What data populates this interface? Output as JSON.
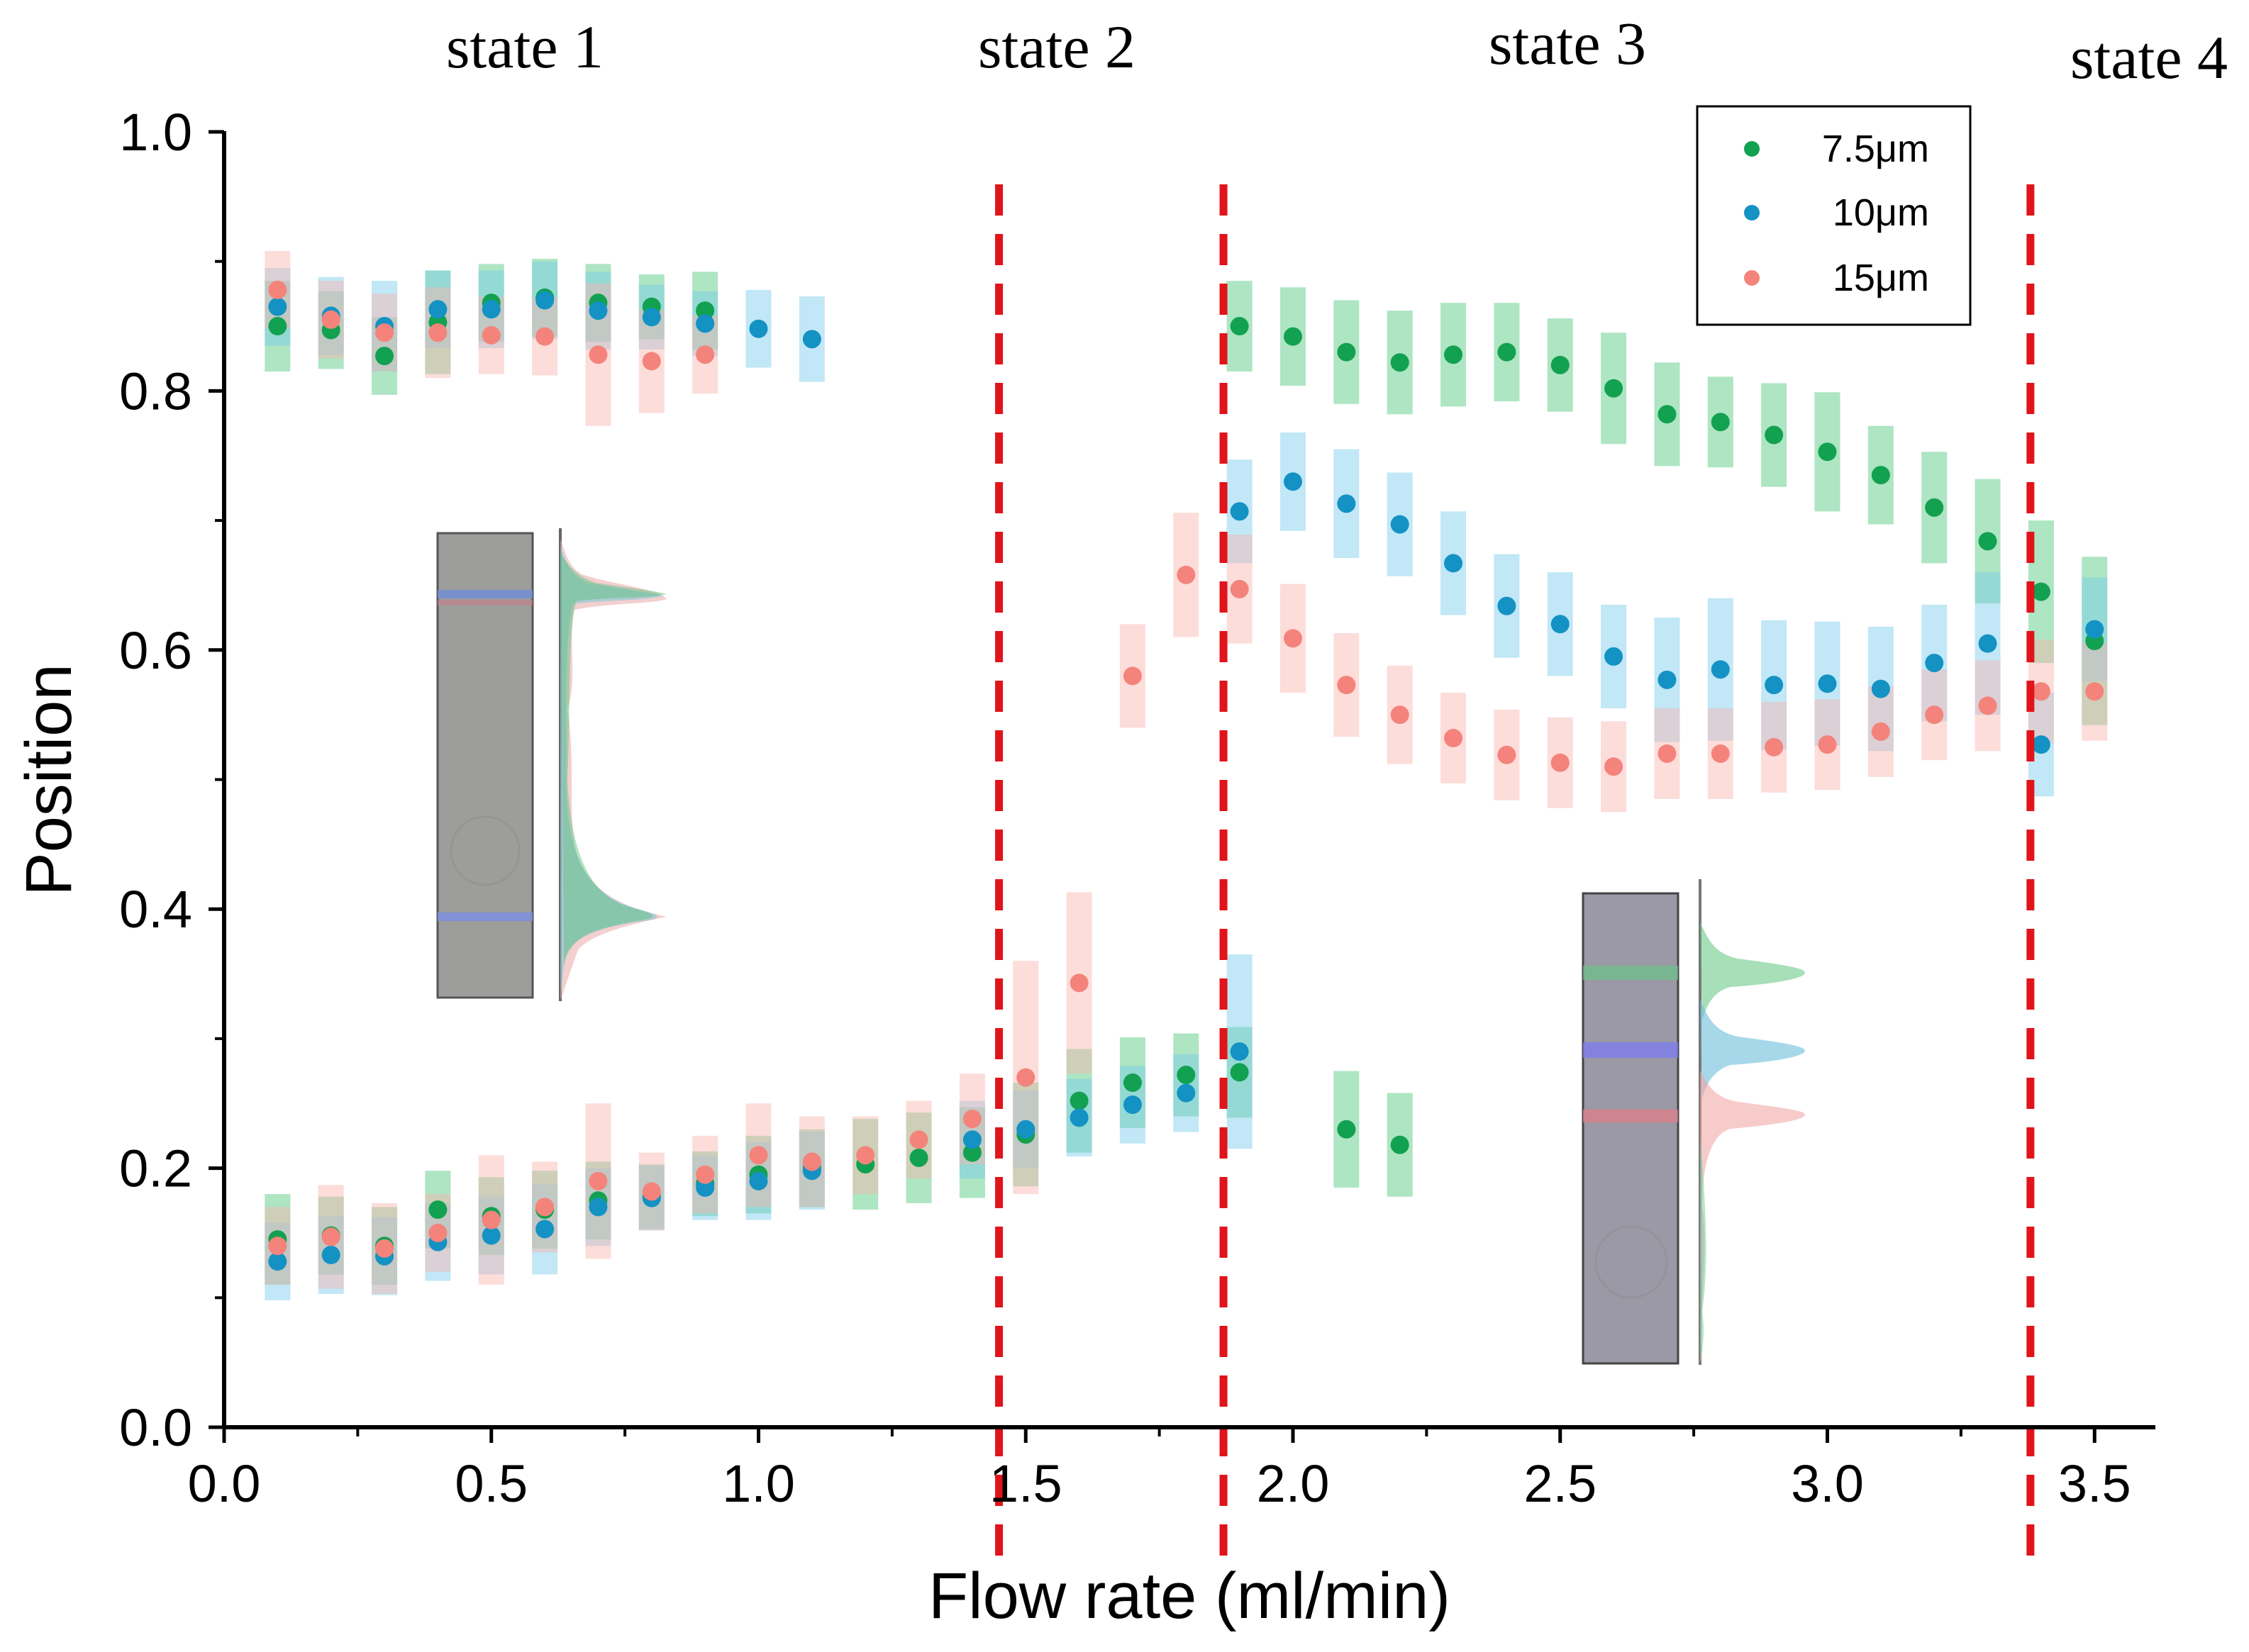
{
  "chart_data": {
    "type": "scatter",
    "xlabel": "Flow rate (ml/min)",
    "ylabel": "Position",
    "xlim": [
      0.0,
      3.6
    ],
    "ylim": [
      0.0,
      1.0
    ],
    "x_ticks": [
      0.0,
      0.5,
      1.0,
      1.5,
      2.0,
      2.5,
      3.0,
      3.5
    ],
    "x_tick_labels": [
      "0.0",
      "0.5",
      "1.0",
      "1.5",
      "2.0",
      "2.5",
      "3.0",
      "3.5"
    ],
    "y_ticks": [
      0.0,
      0.2,
      0.4,
      0.6,
      0.8,
      1.0
    ],
    "y_tick_labels": [
      "0.0",
      "0.2",
      "0.4",
      "0.6",
      "0.8",
      "1.0"
    ],
    "grid": false,
    "legend_position": "top-right",
    "state_labels": [
      {
        "text": "state 1",
        "x": 0.57
      },
      {
        "text": "state 2",
        "x": 1.57
      },
      {
        "text": "state 3",
        "x": 2.53
      },
      {
        "text": "state 4",
        "x": 3.5
      }
    ],
    "boundaries": [
      1.45,
      1.87,
      3.38
    ],
    "boundary_color": "#e0141a",
    "insets": [
      {
        "name": "inset-state1",
        "type": "channel image with intensity profile"
      },
      {
        "name": "inset-state3",
        "type": "channel image with intensity profile"
      }
    ],
    "series": [
      {
        "name": "7.5μm",
        "color": "#12a150",
        "band_color": "#4cc57a",
        "points": [
          [
            0.1,
            0.85,
            0.035
          ],
          [
            0.2,
            0.847,
            0.03
          ],
          [
            0.3,
            0.827,
            0.03
          ],
          [
            0.4,
            0.853,
            0.04
          ],
          [
            0.5,
            0.868,
            0.03
          ],
          [
            0.6,
            0.872,
            0.03
          ],
          [
            0.7,
            0.868,
            0.03
          ],
          [
            0.8,
            0.865,
            0.025
          ],
          [
            0.9,
            0.862,
            0.03
          ],
          [
            1.9,
            0.85,
            0.035
          ],
          [
            2.0,
            0.842,
            0.038
          ],
          [
            2.1,
            0.83,
            0.04
          ],
          [
            2.2,
            0.822,
            0.04
          ],
          [
            2.3,
            0.828,
            0.04
          ],
          [
            2.4,
            0.83,
            0.038
          ],
          [
            2.5,
            0.82,
            0.036
          ],
          [
            2.6,
            0.802,
            0.043
          ],
          [
            2.7,
            0.782,
            0.04
          ],
          [
            2.8,
            0.776,
            0.035
          ],
          [
            2.9,
            0.766,
            0.04
          ],
          [
            3.0,
            0.753,
            0.046
          ],
          [
            3.1,
            0.735,
            0.038
          ],
          [
            3.2,
            0.71,
            0.043
          ],
          [
            3.3,
            0.684,
            0.048
          ],
          [
            3.4,
            0.645,
            0.055
          ],
          [
            3.5,
            0.607,
            0.065
          ],
          [
            0.1,
            0.145,
            0.035
          ],
          [
            0.2,
            0.148,
            0.03
          ],
          [
            0.3,
            0.14,
            0.03
          ],
          [
            0.4,
            0.168,
            0.03
          ],
          [
            0.5,
            0.163,
            0.03
          ],
          [
            0.6,
            0.168,
            0.03
          ],
          [
            0.7,
            0.175,
            0.03
          ],
          [
            0.8,
            0.178,
            0.025
          ],
          [
            0.9,
            0.188,
            0.025
          ],
          [
            1.0,
            0.195,
            0.03
          ],
          [
            1.1,
            0.2,
            0.03
          ],
          [
            1.2,
            0.203,
            0.035
          ],
          [
            1.3,
            0.208,
            0.035
          ],
          [
            1.4,
            0.212,
            0.035
          ],
          [
            1.5,
            0.226,
            0.04
          ],
          [
            1.6,
            0.252,
            0.04
          ],
          [
            1.7,
            0.266,
            0.035
          ],
          [
            1.8,
            0.272,
            0.032
          ],
          [
            1.9,
            0.274,
            0.035
          ],
          [
            2.1,
            0.23,
            0.045
          ],
          [
            2.2,
            0.218,
            0.04
          ]
        ]
      },
      {
        "name": "10μm",
        "color": "#1492c4",
        "band_color": "#78c9ea",
        "points": [
          [
            0.1,
            0.865,
            0.03
          ],
          [
            0.2,
            0.858,
            0.03
          ],
          [
            0.3,
            0.85,
            0.035
          ],
          [
            0.4,
            0.863,
            0.03
          ],
          [
            0.5,
            0.863,
            0.03
          ],
          [
            0.6,
            0.87,
            0.03
          ],
          [
            0.7,
            0.862,
            0.03
          ],
          [
            0.8,
            0.857,
            0.025
          ],
          [
            0.9,
            0.852,
            0.025
          ],
          [
            1.0,
            0.848,
            0.03
          ],
          [
            1.1,
            0.84,
            0.033
          ],
          [
            1.9,
            0.707,
            0.04
          ],
          [
            2.0,
            0.73,
            0.038
          ],
          [
            2.1,
            0.713,
            0.042
          ],
          [
            2.2,
            0.697,
            0.04
          ],
          [
            2.3,
            0.667,
            0.04
          ],
          [
            2.4,
            0.634,
            0.04
          ],
          [
            2.5,
            0.62,
            0.04
          ],
          [
            2.6,
            0.595,
            0.04
          ],
          [
            2.7,
            0.577,
            0.048
          ],
          [
            2.8,
            0.585,
            0.055
          ],
          [
            2.9,
            0.573,
            0.05
          ],
          [
            3.0,
            0.574,
            0.048
          ],
          [
            3.1,
            0.57,
            0.048
          ],
          [
            3.2,
            0.59,
            0.045
          ],
          [
            3.3,
            0.605,
            0.055
          ],
          [
            3.4,
            0.527,
            0.04
          ],
          [
            3.5,
            0.616,
            0.04
          ],
          [
            0.1,
            0.128,
            0.03
          ],
          [
            0.2,
            0.133,
            0.03
          ],
          [
            0.3,
            0.132,
            0.03
          ],
          [
            0.4,
            0.143,
            0.03
          ],
          [
            0.5,
            0.148,
            0.03
          ],
          [
            0.6,
            0.153,
            0.035
          ],
          [
            0.7,
            0.17,
            0.03
          ],
          [
            0.8,
            0.177,
            0.025
          ],
          [
            0.9,
            0.185,
            0.025
          ],
          [
            1.0,
            0.19,
            0.03
          ],
          [
            1.1,
            0.198,
            0.03
          ],
          [
            1.4,
            0.222,
            0.03
          ],
          [
            1.5,
            0.23,
            0.03
          ],
          [
            1.6,
            0.239,
            0.03
          ],
          [
            1.7,
            0.249,
            0.03
          ],
          [
            1.8,
            0.258,
            0.03
          ],
          [
            1.9,
            0.29,
            0.075
          ]
        ]
      },
      {
        "name": "15μm",
        "color": "#f4837c",
        "band_color": "#f9b3ae",
        "points": [
          [
            0.1,
            0.878,
            0.03
          ],
          [
            0.2,
            0.855,
            0.03
          ],
          [
            0.3,
            0.845,
            0.03
          ],
          [
            0.4,
            0.845,
            0.035
          ],
          [
            0.5,
            0.843,
            0.03
          ],
          [
            0.6,
            0.842,
            0.03
          ],
          [
            0.7,
            0.828,
            0.055
          ],
          [
            0.8,
            0.823,
            0.04
          ],
          [
            0.9,
            0.828,
            0.03
          ],
          [
            1.7,
            0.58,
            0.04
          ],
          [
            1.8,
            0.658,
            0.048
          ],
          [
            1.9,
            0.647,
            0.042
          ],
          [
            2.0,
            0.609,
            0.042
          ],
          [
            2.1,
            0.573,
            0.04
          ],
          [
            2.2,
            0.55,
            0.038
          ],
          [
            2.3,
            0.532,
            0.035
          ],
          [
            2.4,
            0.519,
            0.035
          ],
          [
            2.5,
            0.513,
            0.035
          ],
          [
            2.6,
            0.51,
            0.035
          ],
          [
            2.7,
            0.52,
            0.035
          ],
          [
            2.8,
            0.52,
            0.035
          ],
          [
            2.9,
            0.525,
            0.035
          ],
          [
            3.0,
            0.527,
            0.035
          ],
          [
            3.1,
            0.537,
            0.035
          ],
          [
            3.2,
            0.55,
            0.035
          ],
          [
            3.3,
            0.557,
            0.035
          ],
          [
            3.4,
            0.568,
            0.04
          ],
          [
            3.5,
            0.568,
            0.038
          ],
          [
            0.1,
            0.14,
            0.03
          ],
          [
            0.2,
            0.147,
            0.04
          ],
          [
            0.3,
            0.138,
            0.035
          ],
          [
            0.4,
            0.15,
            0.03
          ],
          [
            0.5,
            0.16,
            0.05
          ],
          [
            0.6,
            0.17,
            0.035
          ],
          [
            0.7,
            0.19,
            0.06
          ],
          [
            0.8,
            0.182,
            0.03
          ],
          [
            0.9,
            0.195,
            0.03
          ],
          [
            1.0,
            0.21,
            0.04
          ],
          [
            1.1,
            0.205,
            0.035
          ],
          [
            1.2,
            0.21,
            0.03
          ],
          [
            1.3,
            0.222,
            0.03
          ],
          [
            1.4,
            0.238,
            0.035
          ],
          [
            1.5,
            0.27,
            0.09
          ],
          [
            1.6,
            0.343,
            0.07
          ]
        ]
      }
    ]
  }
}
